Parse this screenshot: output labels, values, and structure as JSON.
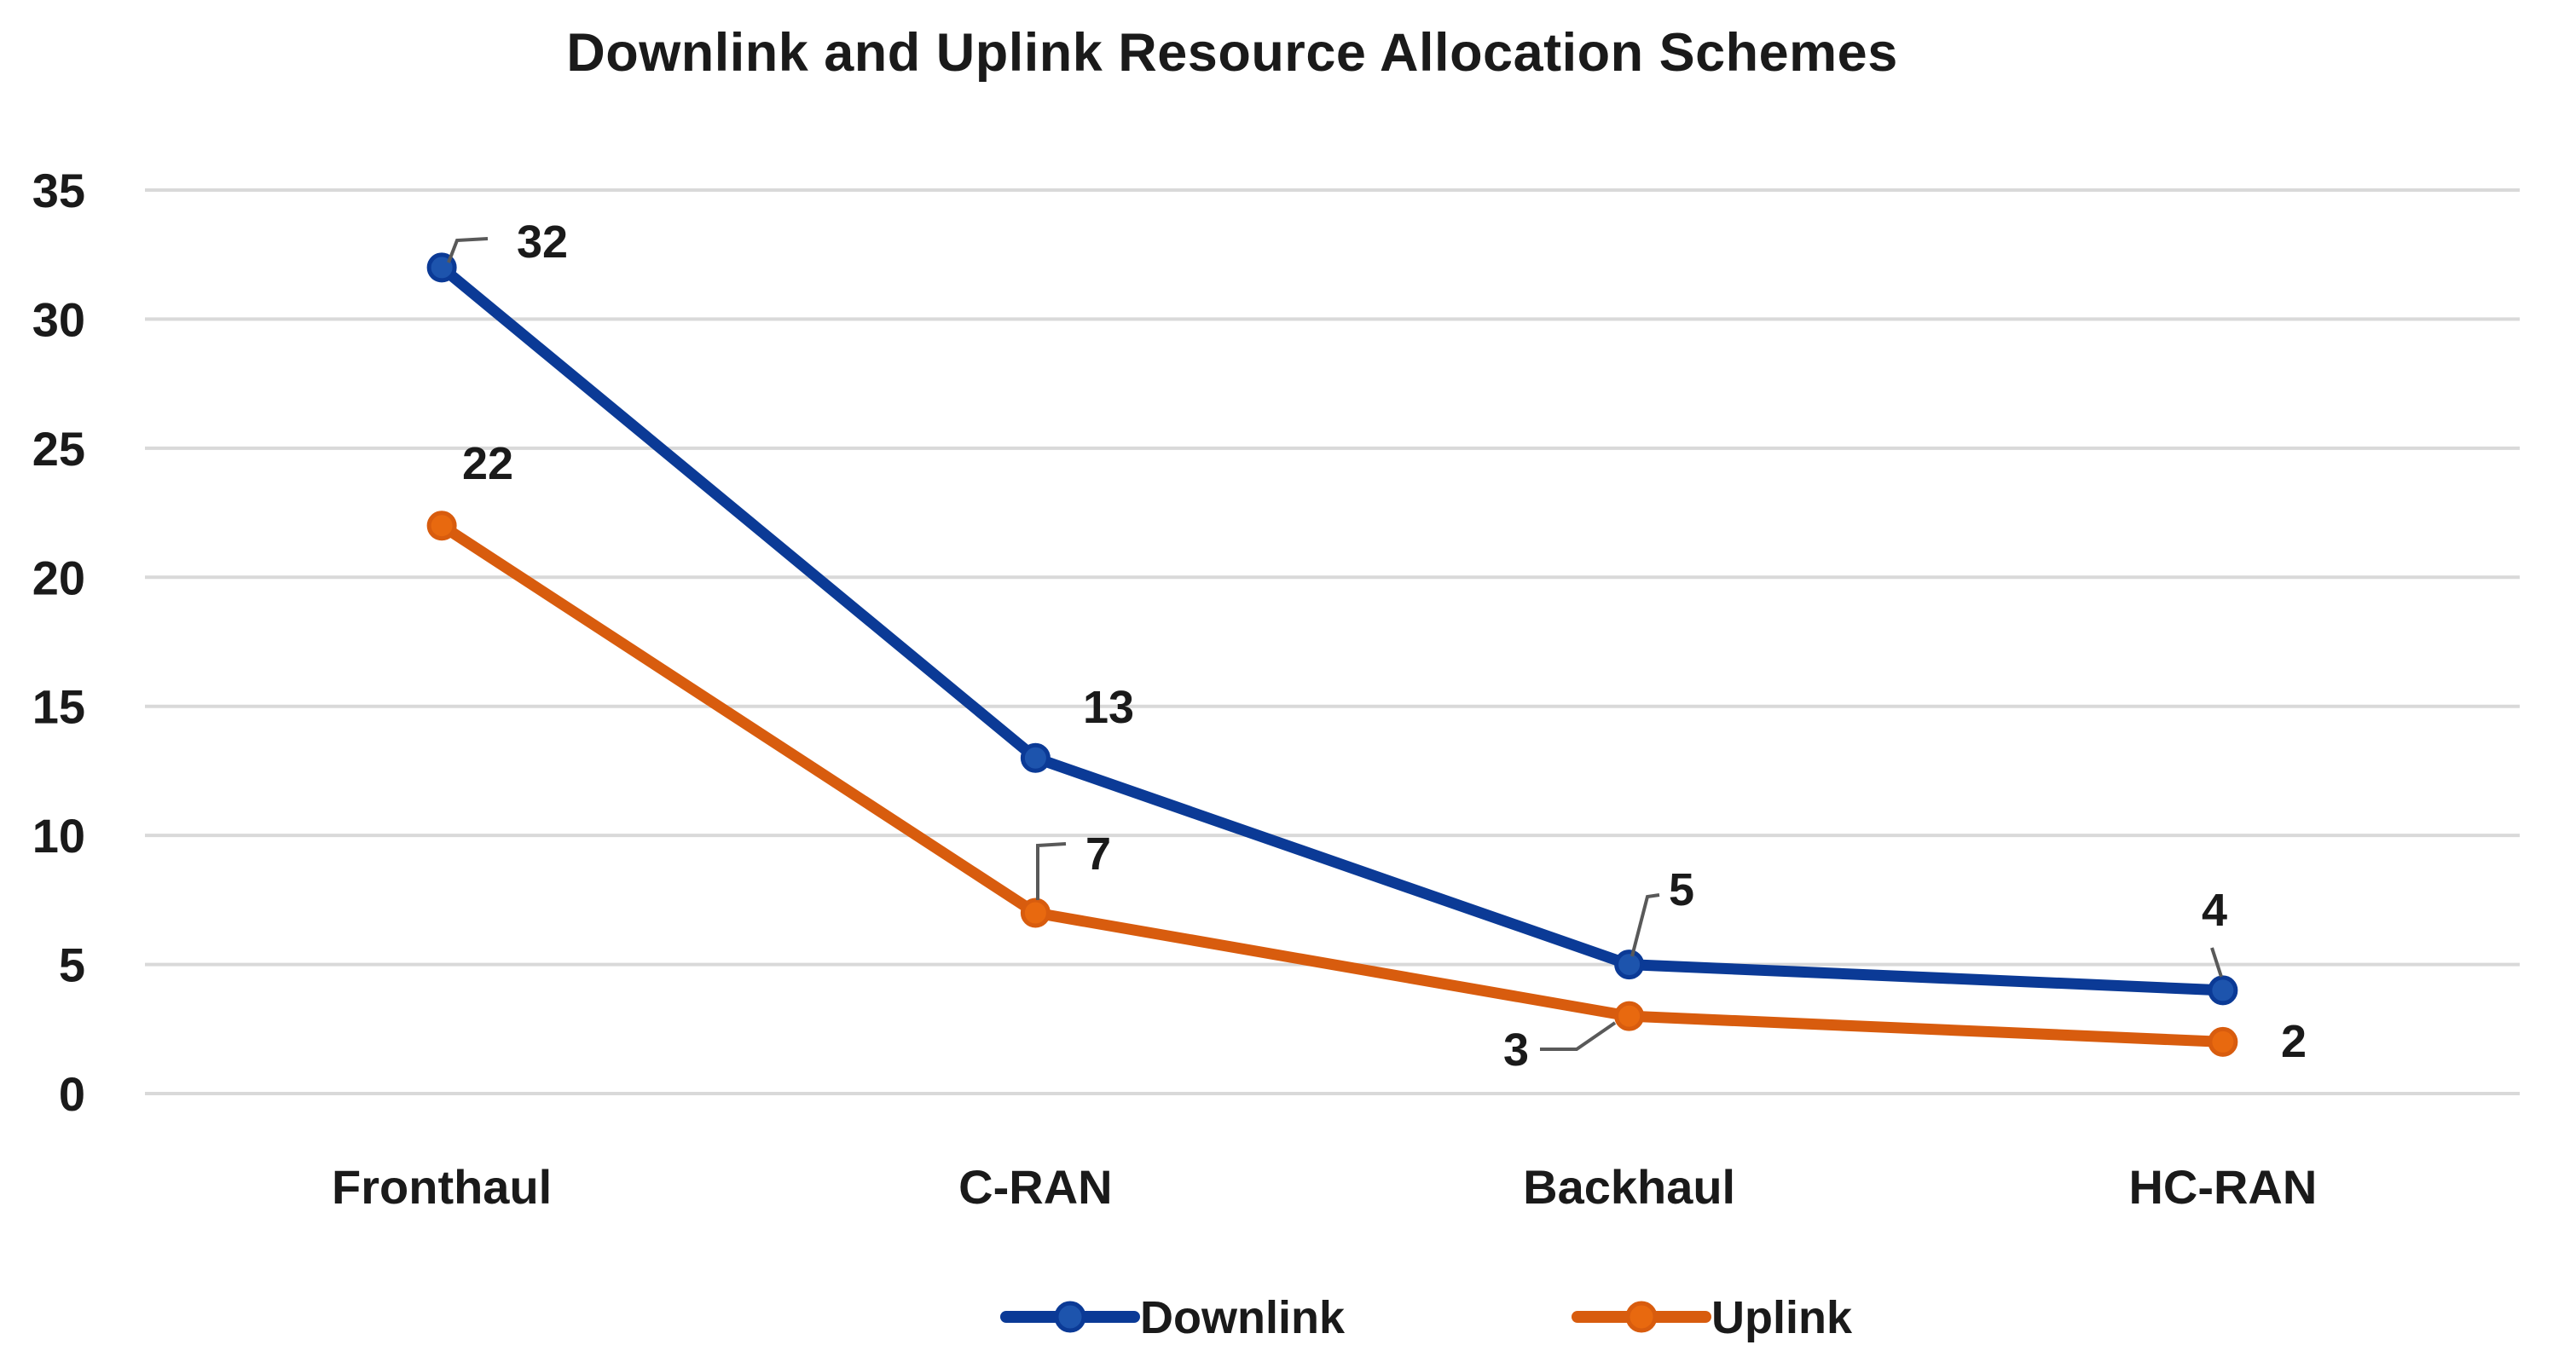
{
  "chart_data": {
    "type": "line",
    "title": "Downlink and Uplink Resource Allocation Schemes",
    "categories": [
      "Fronthaul",
      "C-RAN",
      "Backhaul",
      "HC-RAN"
    ],
    "series": [
      {
        "name": "Downlink",
        "color": "#0b3a96",
        "marker_fill": "#1d54ad",
        "values": [
          32,
          13,
          5,
          4
        ]
      },
      {
        "name": "Uplink",
        "color": "#d85c0e",
        "marker_fill": "#e8690f",
        "values": [
          22,
          7,
          3,
          2
        ]
      }
    ],
    "ylim": [
      0,
      35
    ],
    "yticks": [
      0,
      5,
      10,
      15,
      20,
      25,
      30,
      35
    ],
    "xlabel": "",
    "ylabel": "",
    "grid": "horizontal",
    "gridline_color": "#d9d9d9",
    "legend_position": "bottom",
    "legend_entries": [
      "Downlink",
      "Uplink"
    ],
    "data_labels": true,
    "leader_line_color": "#595959",
    "text_color": "#1a1a1a"
  }
}
